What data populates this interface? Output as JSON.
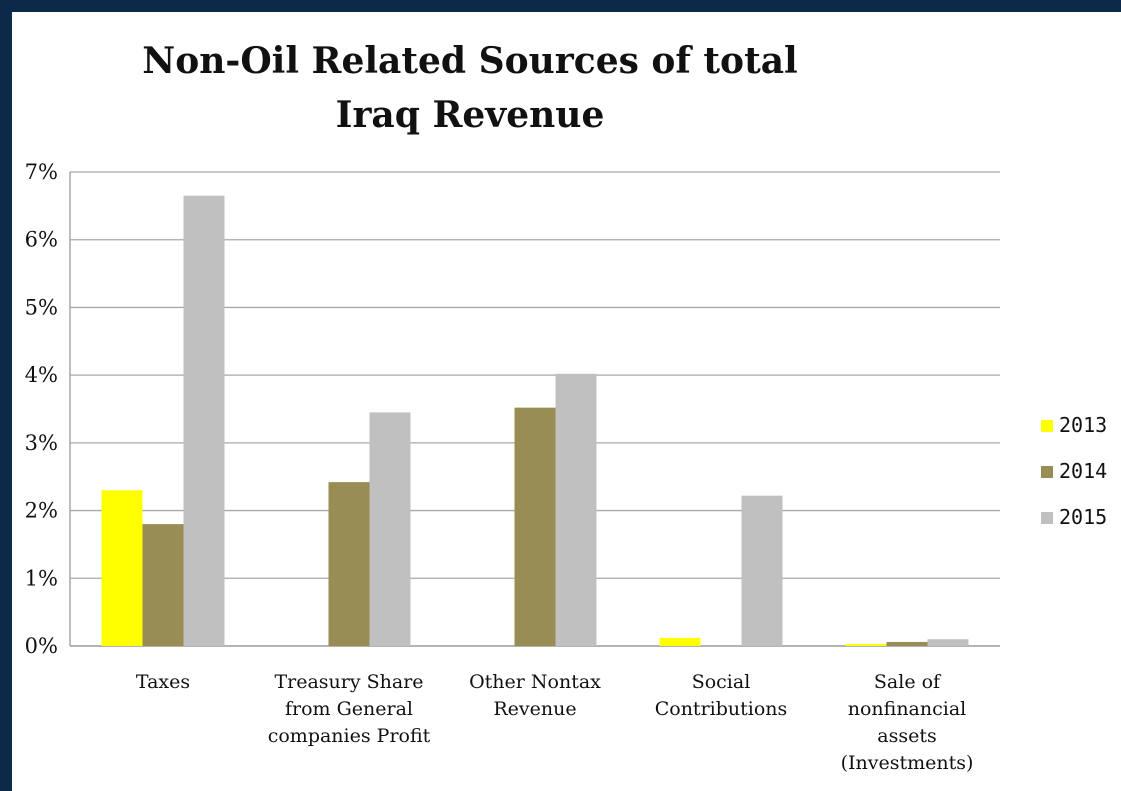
{
  "chart_data": {
    "type": "bar",
    "title": "Non-Oil Related Sources of total Iraq Revenue",
    "xlabel": "",
    "ylabel": "",
    "ylim": [
      0,
      7
    ],
    "yticks": [
      "0%",
      "1%",
      "2%",
      "3%",
      "4%",
      "5%",
      "6%",
      "7%"
    ],
    "grid": true,
    "legend_position": "right",
    "categories": [
      "Taxes",
      "Treasury Share from General companies Profit",
      "Other Nontax Revenue",
      "Social Contributions",
      "Sale of nonfinancial assets (Investments)"
    ],
    "category_lines": [
      [
        "Taxes"
      ],
      [
        "Treasury Share",
        "from General",
        "companies Profit"
      ],
      [
        "Other Nontax",
        "Revenue"
      ],
      [
        "Social",
        "Contributions"
      ],
      [
        "Sale of",
        "nonfinancial",
        "assets",
        "(Investments)"
      ]
    ],
    "series": [
      {
        "name": "2013",
        "color": "#ffff00",
        "values": [
          2.3,
          0,
          0,
          0.12,
          0.03
        ]
      },
      {
        "name": "2014",
        "color": "#978d55",
        "values": [
          1.8,
          2.42,
          3.52,
          0,
          0.06
        ]
      },
      {
        "name": "2015",
        "color": "#c0c0c0",
        "values": [
          6.65,
          3.45,
          4.02,
          2.22,
          0.1
        ]
      }
    ]
  }
}
